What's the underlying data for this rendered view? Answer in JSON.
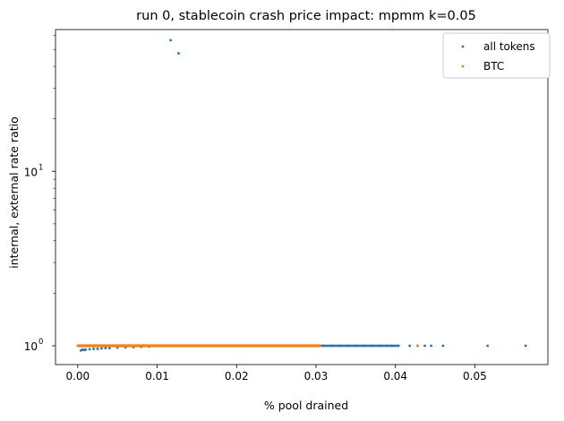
{
  "chart_data": {
    "type": "scatter",
    "title": "run 0, stablecoin crash price impact: mpmm k=0.05",
    "xlabel": "% pool drained",
    "ylabel": "internal, external rate ratio",
    "xlim": [
      -0.0028,
      0.0592
    ],
    "ylim": [
      0.78,
      65
    ],
    "yscale": "log",
    "grid": false,
    "legend_position": "top-right",
    "x_ticks": [
      {
        "value": 0.0,
        "label": "0.00"
      },
      {
        "value": 0.01,
        "label": "0.01"
      },
      {
        "value": 0.02,
        "label": "0.02"
      },
      {
        "value": 0.03,
        "label": "0.03"
      },
      {
        "value": 0.04,
        "label": "0.04"
      },
      {
        "value": 0.05,
        "label": "0.05"
      }
    ],
    "y_major_ticks": [
      {
        "value": 1,
        "label": "10",
        "exp": "0"
      },
      {
        "value": 10,
        "label": "10",
        "exp": "1"
      }
    ],
    "y_minor_ticks": [
      2,
      3,
      4,
      5,
      6,
      7,
      8,
      9,
      20,
      30,
      40,
      50,
      60
    ],
    "series": [
      {
        "name": "all tokens",
        "color": "#1f77b4",
        "points": [
          [
            0.0004,
            0.94
          ],
          [
            0.0006,
            0.95
          ],
          [
            0.0008,
            0.945
          ],
          [
            0.001,
            0.95
          ],
          [
            0.0015,
            0.955
          ],
          [
            0.002,
            0.96
          ],
          [
            0.0025,
            0.96
          ],
          [
            0.003,
            0.965
          ],
          [
            0.0035,
            0.97
          ],
          [
            0.004,
            0.97
          ],
          [
            0.005,
            0.975
          ],
          [
            0.006,
            0.98
          ],
          [
            0.007,
            0.982
          ],
          [
            0.008,
            0.985
          ],
          [
            0.009,
            0.988
          ],
          [
            0.0117,
            56.5
          ],
          [
            0.0127,
            47.5
          ],
          [
            0.015,
            1.0
          ],
          [
            0.018,
            1.0
          ],
          [
            0.02,
            1.0
          ],
          [
            0.022,
            1.0
          ],
          [
            0.024,
            1.0
          ],
          [
            0.026,
            1.0
          ],
          [
            0.028,
            1.0
          ],
          [
            0.03,
            1.0
          ],
          [
            0.031,
            1.0
          ],
          [
            0.032,
            1.0
          ],
          [
            0.033,
            1.0
          ],
          [
            0.034,
            1.0
          ],
          [
            0.035,
            1.0
          ],
          [
            0.036,
            1.0
          ],
          [
            0.037,
            1.0
          ],
          [
            0.038,
            1.0
          ],
          [
            0.039,
            1.0
          ],
          [
            0.0395,
            1.0
          ],
          [
            0.0404,
            1.0
          ],
          [
            0.0418,
            1.0
          ],
          [
            0.0428,
            1.0
          ],
          [
            0.0437,
            1.0
          ],
          [
            0.0445,
            1.0
          ],
          [
            0.046,
            1.0
          ],
          [
            0.0516,
            1.0
          ],
          [
            0.0564,
            1.0
          ]
        ],
        "band": {
          "x_start": 0.0,
          "x_end": 0.0404,
          "y": 1.0
        }
      },
      {
        "name": "BTC",
        "color": "#ff7f0e",
        "points": [
          [
            0.0,
            1.0
          ],
          [
            0.002,
            0.995
          ],
          [
            0.005,
            0.998
          ],
          [
            0.01,
            1.0
          ],
          [
            0.015,
            1.0
          ],
          [
            0.02,
            1.0
          ],
          [
            0.025,
            1.0
          ],
          [
            0.028,
            1.0
          ],
          [
            0.0305,
            1.0
          ],
          [
            0.0428,
            1.0
          ]
        ],
        "band": {
          "x_start": 0.0,
          "x_end": 0.0305,
          "y": 1.0
        }
      }
    ]
  }
}
